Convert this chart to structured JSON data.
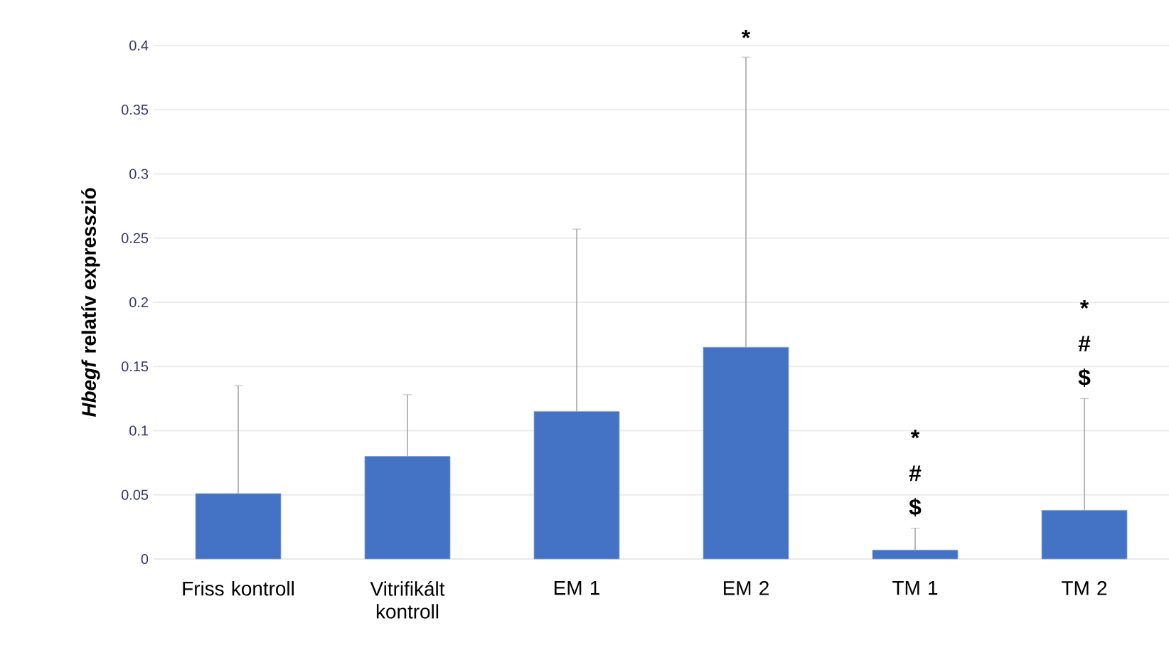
{
  "chart_data": {
    "type": "bar",
    "ylabel": "*Hbegf* relatív expresszió",
    "categories": [
      "Friss kontroll",
      "Vitrifikált kontroll",
      "EM 1",
      "EM 2",
      "TM 1",
      "TM 2"
    ],
    "values": [
      0.051,
      0.08,
      0.115,
      0.165,
      0.007,
      0.038
    ],
    "errors": [
      [
        0.051,
        0.135
      ],
      [
        0.08,
        0.128
      ],
      [
        0.115,
        0.257
      ],
      [
        0.165,
        0.391
      ],
      [
        0.007,
        0.024
      ],
      [
        0.038,
        0.125
      ]
    ],
    "color": "#4472c4",
    "ylim": [
      0,
      0.4
    ],
    "yticks": [
      0,
      0.05,
      0.1,
      0.15,
      0.2,
      0.25,
      0.3,
      0.35,
      0.4
    ],
    "grid": "y",
    "annotations": [
      "*",
      "*",
      "#",
      "$",
      "*",
      "#",
      "$"
    ]
  }
}
